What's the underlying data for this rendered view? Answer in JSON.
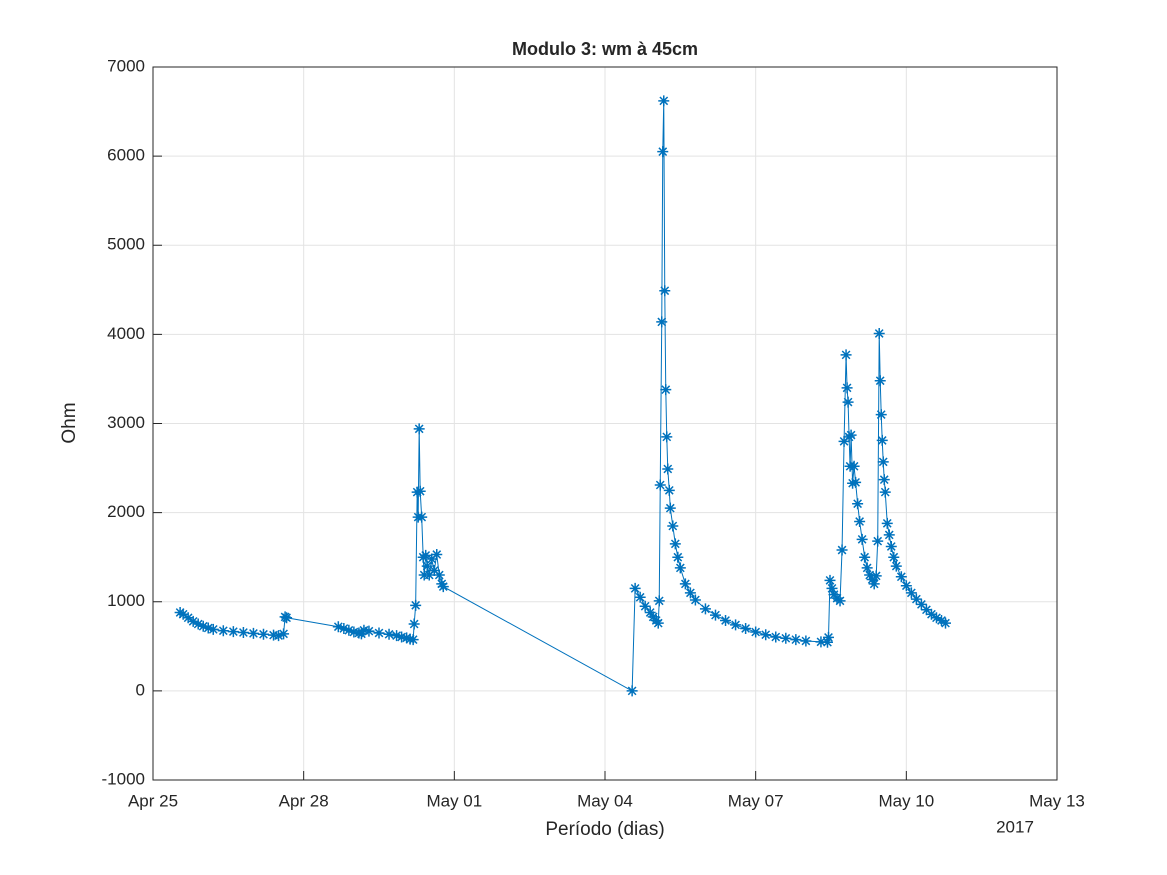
{
  "chart_data": {
    "type": "line",
    "title": "Modulo 3: wm à 45cm",
    "x_label": "Período (dias)",
    "y_label": "Ohm",
    "x_secondary_label": "2017",
    "color": "#0072bd",
    "grid": true,
    "marker": "asterisk",
    "xlim": [
      0,
      18
    ],
    "xticks": [
      {
        "value": 0,
        "label": "Apr 25"
      },
      {
        "value": 3,
        "label": "Apr 28"
      },
      {
        "value": 6,
        "label": "May 01"
      },
      {
        "value": 9,
        "label": "May 04"
      },
      {
        "value": 12,
        "label": "May 07"
      },
      {
        "value": 15,
        "label": "May 10"
      },
      {
        "value": 18,
        "label": "May 13"
      }
    ],
    "ylim": [
      -1000,
      7000
    ],
    "yticks": [
      -1000,
      0,
      1000,
      2000,
      3000,
      4000,
      5000,
      6000,
      7000
    ],
    "x": [
      0.54,
      0.6,
      0.7,
      0.8,
      0.9,
      1.0,
      1.1,
      1.2,
      1.4,
      1.6,
      1.8,
      2.0,
      2.2,
      2.4,
      2.5,
      2.6,
      2.63,
      2.66,
      3.69,
      3.8,
      3.9,
      4.0,
      4.1,
      4.15,
      4.2,
      4.3,
      4.5,
      4.7,
      4.85,
      4.95,
      5.05,
      5.12,
      5.18,
      5.2,
      5.23,
      5.26,
      5.28,
      5.3,
      5.32,
      5.35,
      5.38,
      5.4,
      5.43,
      5.46,
      5.5,
      5.55,
      5.6,
      5.65,
      5.7,
      5.75,
      5.78,
      9.54,
      9.6,
      9.7,
      9.8,
      9.9,
      9.96,
      10.02,
      10.06,
      10.08,
      10.1,
      10.13,
      10.15,
      10.17,
      10.19,
      10.21,
      10.23,
      10.25,
      10.28,
      10.3,
      10.35,
      10.4,
      10.45,
      10.5,
      10.6,
      10.7,
      10.8,
      11.0,
      11.2,
      11.4,
      11.6,
      11.8,
      12.0,
      12.2,
      12.4,
      12.6,
      12.8,
      13.0,
      13.3,
      13.43,
      13.45,
      13.48,
      13.52,
      13.56,
      13.62,
      13.68,
      13.72,
      13.76,
      13.8,
      13.82,
      13.84,
      13.86,
      13.88,
      13.9,
      13.93,
      13.96,
      13.99,
      14.03,
      14.07,
      14.12,
      14.17,
      14.22,
      14.27,
      14.32,
      14.36,
      14.4,
      14.43,
      14.46,
      14.48,
      14.5,
      14.52,
      14.54,
      14.56,
      14.58,
      14.62,
      14.66,
      14.7,
      14.75,
      14.8,
      14.9,
      15.0,
      15.1,
      15.2,
      15.3,
      15.4,
      15.5,
      15.6,
      15.7,
      15.78
    ],
    "values": [
      880,
      860,
      820,
      780,
      750,
      725,
      705,
      690,
      675,
      665,
      655,
      645,
      635,
      625,
      620,
      640,
      830,
      820,
      720,
      700,
      680,
      660,
      650,
      640,
      680,
      670,
      650,
      635,
      620,
      605,
      595,
      580,
      575,
      750,
      960,
      2230,
      1950,
      2940,
      2240,
      1950,
      1500,
      1300,
      1520,
      1400,
      1300,
      1480,
      1350,
      1530,
      1300,
      1200,
      1170,
      0,
      1150,
      1050,
      950,
      880,
      830,
      790,
      760,
      1010,
      2310,
      4140,
      6050,
      6620,
      4490,
      3380,
      2850,
      2490,
      2250,
      2050,
      1850,
      1650,
      1500,
      1380,
      1200,
      1100,
      1020,
      920,
      850,
      790,
      740,
      700,
      660,
      630,
      605,
      590,
      575,
      560,
      550,
      545,
      600,
      1240,
      1150,
      1080,
      1040,
      1010,
      1580,
      2800,
      3770,
      3400,
      3240,
      2850,
      2520,
      2870,
      2330,
      2520,
      2340,
      2100,
      1900,
      1700,
      1500,
      1380,
      1300,
      1250,
      1200,
      1290,
      1680,
      4010,
      3480,
      3100,
      2810,
      2570,
      2370,
      2230,
      1880,
      1750,
      1620,
      1500,
      1400,
      1280,
      1180,
      1100,
      1030,
      970,
      910,
      860,
      820,
      790,
      760
    ]
  }
}
